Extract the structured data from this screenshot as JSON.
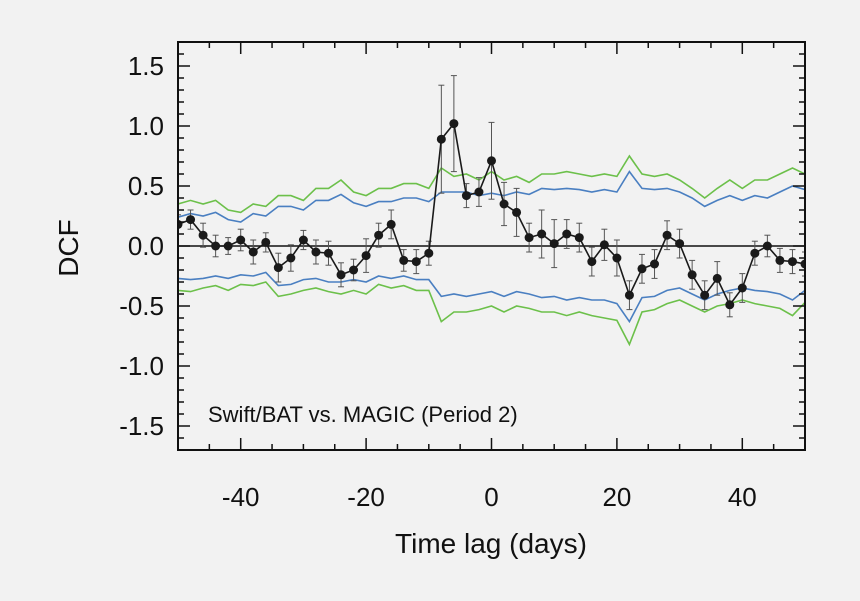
{
  "chart_data": {
    "type": "scatter",
    "xlabel": "Time lag (days)",
    "ylabel": "DCF",
    "annotation": "Swift/BAT vs. MAGIC (Period 2)",
    "xlim": [
      -50,
      50
    ],
    "ylim": [
      -1.7,
      1.7
    ],
    "xticks": [
      -40,
      -20,
      0,
      20,
      40
    ],
    "xtick_labels": [
      "-40",
      "-20",
      "0",
      "20",
      "40"
    ],
    "yticks": [
      1.5,
      1.0,
      0.5,
      0.0,
      -0.5,
      -1.0,
      -1.5
    ],
    "ytick_labels": [
      "1.5",
      "1.0",
      "0.5",
      "0.0",
      "-0.5",
      "-1.0",
      "-1.5"
    ],
    "zero_line": 0,
    "grid": false,
    "colors": {
      "data": "#1a1a1a",
      "error": "#555555",
      "band_inner": "#4a7fc1",
      "band_outer": "#6cc04a",
      "axis": "#111111"
    },
    "x": [
      -50,
      -48,
      -46,
      -44,
      -42,
      -40,
      -38,
      -36,
      -34,
      -32,
      -30,
      -28,
      -26,
      -24,
      -22,
      -20,
      -18,
      -16,
      -14,
      -12,
      -10,
      -8,
      -6,
      -4,
      -2,
      0,
      2,
      4,
      6,
      8,
      10,
      12,
      14,
      16,
      18,
      20,
      22,
      24,
      26,
      28,
      30,
      32,
      34,
      36,
      38,
      40,
      42,
      44,
      46,
      48,
      50
    ],
    "series": [
      {
        "role": "dcf",
        "values": [
          0.18,
          0.22,
          0.09,
          0.0,
          0.0,
          0.05,
          -0.05,
          0.03,
          -0.18,
          -0.1,
          0.05,
          -0.05,
          -0.06,
          -0.24,
          -0.2,
          -0.08,
          0.09,
          0.18,
          -0.12,
          -0.13,
          -0.06,
          0.89,
          1.02,
          0.42,
          0.45,
          0.71,
          0.35,
          0.28,
          0.07,
          0.1,
          0.02,
          0.1,
          0.07,
          -0.13,
          0.01,
          -0.1,
          -0.41,
          -0.19,
          -0.15,
          0.09,
          0.02,
          -0.24,
          -0.41,
          -0.27,
          -0.49,
          -0.35,
          -0.06,
          0.0,
          -0.12,
          -0.13,
          -0.15
        ],
        "errors": [
          0.08,
          0.08,
          0.1,
          0.09,
          0.07,
          0.09,
          0.1,
          0.08,
          0.12,
          0.11,
          0.08,
          0.1,
          0.1,
          0.1,
          0.09,
          0.14,
          0.1,
          0.12,
          0.09,
          0.1,
          0.1,
          0.45,
          0.4,
          0.1,
          0.12,
          0.32,
          0.18,
          0.2,
          0.12,
          0.2,
          0.2,
          0.12,
          0.12,
          0.12,
          0.13,
          0.15,
          0.12,
          0.12,
          0.12,
          0.12,
          0.12,
          0.12,
          0.12,
          0.14,
          0.1,
          0.12,
          0.1,
          0.09,
          0.1,
          0.1,
          0.1
        ]
      },
      {
        "role": "band-upper-inner",
        "values": [
          0.24,
          0.27,
          0.25,
          0.28,
          0.22,
          0.2,
          0.27,
          0.25,
          0.33,
          0.33,
          0.3,
          0.38,
          0.38,
          0.43,
          0.36,
          0.33,
          0.37,
          0.37,
          0.4,
          0.4,
          0.37,
          0.45,
          0.45,
          0.45,
          0.42,
          0.44,
          0.42,
          0.45,
          0.43,
          0.48,
          0.47,
          0.48,
          0.47,
          0.45,
          0.47,
          0.45,
          0.62,
          0.48,
          0.47,
          0.48,
          0.45,
          0.4,
          0.33,
          0.38,
          0.42,
          0.38,
          0.42,
          0.4,
          0.45,
          0.5,
          0.47
        ]
      },
      {
        "role": "band-lower-inner",
        "values": [
          -0.27,
          -0.28,
          -0.27,
          -0.25,
          -0.27,
          -0.24,
          -0.25,
          -0.22,
          -0.33,
          -0.32,
          -0.28,
          -0.27,
          -0.3,
          -0.3,
          -0.28,
          -0.3,
          -0.25,
          -0.27,
          -0.25,
          -0.28,
          -0.28,
          -0.42,
          -0.4,
          -0.42,
          -0.4,
          -0.38,
          -0.42,
          -0.38,
          -0.4,
          -0.43,
          -0.42,
          -0.45,
          -0.43,
          -0.45,
          -0.45,
          -0.48,
          -0.63,
          -0.43,
          -0.42,
          -0.37,
          -0.35,
          -0.4,
          -0.45,
          -0.4,
          -0.37,
          -0.35,
          -0.37,
          -0.38,
          -0.4,
          -0.45,
          -0.37
        ]
      },
      {
        "role": "band-upper-outer",
        "values": [
          0.35,
          0.38,
          0.35,
          0.38,
          0.3,
          0.28,
          0.35,
          0.33,
          0.42,
          0.42,
          0.38,
          0.48,
          0.48,
          0.55,
          0.45,
          0.42,
          0.48,
          0.48,
          0.52,
          0.52,
          0.48,
          0.65,
          0.58,
          0.6,
          0.55,
          0.62,
          0.55,
          0.58,
          0.53,
          0.6,
          0.6,
          0.62,
          0.6,
          0.58,
          0.6,
          0.58,
          0.75,
          0.6,
          0.58,
          0.6,
          0.55,
          0.48,
          0.4,
          0.48,
          0.55,
          0.48,
          0.55,
          0.55,
          0.6,
          0.65,
          0.6
        ]
      },
      {
        "role": "band-lower-outer",
        "values": [
          -0.37,
          -0.38,
          -0.35,
          -0.33,
          -0.37,
          -0.32,
          -0.33,
          -0.3,
          -0.42,
          -0.4,
          -0.37,
          -0.35,
          -0.38,
          -0.4,
          -0.37,
          -0.4,
          -0.32,
          -0.35,
          -0.33,
          -0.37,
          -0.37,
          -0.63,
          -0.55,
          -0.55,
          -0.53,
          -0.5,
          -0.55,
          -0.5,
          -0.52,
          -0.55,
          -0.55,
          -0.58,
          -0.55,
          -0.58,
          -0.6,
          -0.62,
          -0.82,
          -0.55,
          -0.53,
          -0.48,
          -0.45,
          -0.5,
          -0.55,
          -0.5,
          -0.48,
          -0.45,
          -0.48,
          -0.5,
          -0.52,
          -0.58,
          -0.47
        ]
      }
    ]
  }
}
